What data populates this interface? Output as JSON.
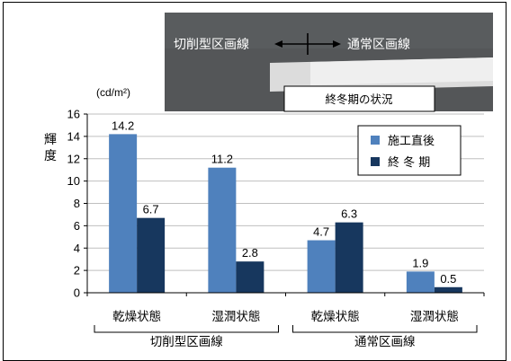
{
  "photo": {
    "left_label": "切削型区画線",
    "right_label": "通常区画線",
    "caption": "終冬期の状況"
  },
  "chart_data": {
    "type": "bar",
    "unit": "(cd/m²)",
    "ylabel": "輝度",
    "ylim": [
      0,
      16
    ],
    "yticks": [
      0,
      2,
      4,
      6,
      8,
      10,
      12,
      14,
      16
    ],
    "grid": true,
    "legend_position": "top-right",
    "categories": [
      "乾燥状態",
      "湿潤状態",
      "乾燥状態",
      "湿潤状態"
    ],
    "groups": [
      {
        "label": "切削型区画線",
        "categories": [
          0,
          1
        ]
      },
      {
        "label": "通常区画線",
        "categories": [
          2,
          3
        ]
      }
    ],
    "series": [
      {
        "name": "施工直後",
        "color": "#4f81bd",
        "values": [
          14.2,
          11.2,
          4.7,
          1.9
        ]
      },
      {
        "name": "終 冬 期",
        "color": "#17375e",
        "values": [
          6.7,
          2.8,
          6.3,
          0.5
        ]
      }
    ]
  }
}
